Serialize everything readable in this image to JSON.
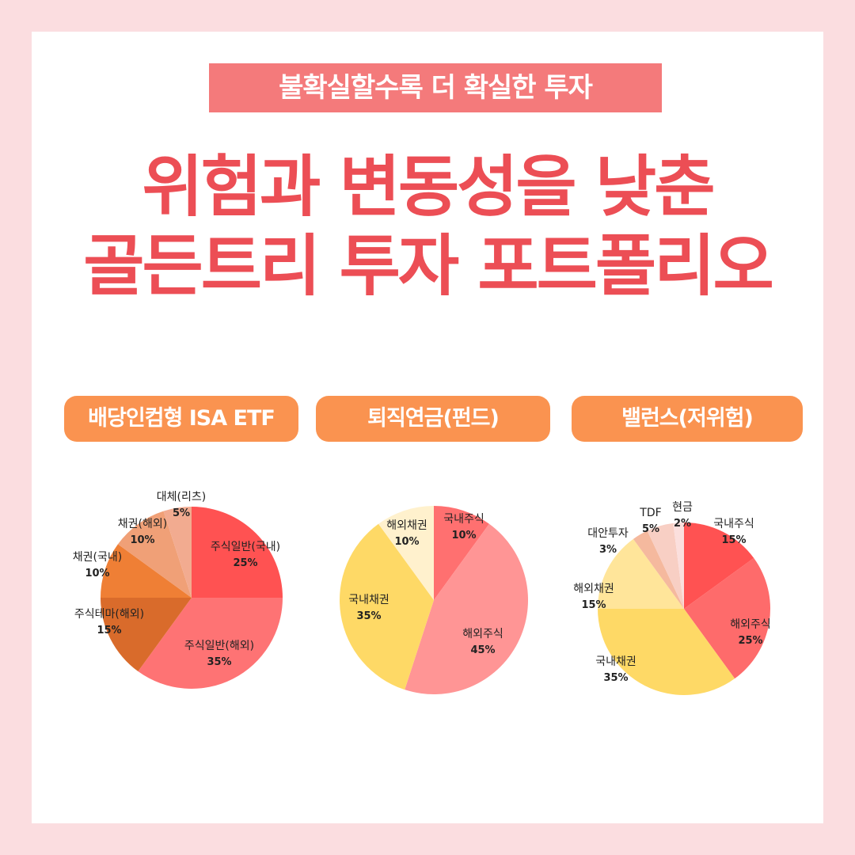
{
  "banner": {
    "text": "불확실할수록 더 확실한 투자"
  },
  "headline": {
    "line1": "위험과 변동성을 낮춘",
    "line2": "골든트리 투자 포트폴리오"
  },
  "chart_data": [
    {
      "type": "pie",
      "title": "배당인컴형 ISA ETF",
      "slices": [
        {
          "label": "주식일반(국내)",
          "value": 25,
          "value_label": "25%",
          "color": "#ff5252"
        },
        {
          "label": "주식일반(해외)",
          "value": 35,
          "value_label": "35%",
          "color": "#fe7374"
        },
        {
          "label": "주식테마(해외)",
          "value": 15,
          "value_label": "15%",
          "color": "#d96b2b"
        },
        {
          "label": "채권(국내)",
          "value": 10,
          "value_label": "10%",
          "color": "#ef7f35"
        },
        {
          "label": "채권(해외)",
          "value": 10,
          "value_label": "10%",
          "color": "#f0a077"
        },
        {
          "label": "대체(리츠)",
          "value": 5,
          "value_label": "5%",
          "color": "#f2ab90"
        }
      ]
    },
    {
      "type": "pie",
      "title": "퇴직연금(펀드)",
      "slices": [
        {
          "label": "국내주식",
          "value": 10,
          "value_label": "10%",
          "color": "#ff7070"
        },
        {
          "label": "해외주식",
          "value": 45,
          "value_label": "45%",
          "color": "#ff9595"
        },
        {
          "label": "국내채권",
          "value": 35,
          "value_label": "35%",
          "color": "#fed966"
        },
        {
          "label": "해외채권",
          "value": 10,
          "value_label": "10%",
          "color": "#fff1cd"
        }
      ]
    },
    {
      "type": "pie",
      "title": "밸런스(저위험)",
      "slices": [
        {
          "label": "국내주식",
          "value": 15,
          "value_label": "15%",
          "color": "#ff5252"
        },
        {
          "label": "해외주식",
          "value": 25,
          "value_label": "25%",
          "color": "#fe6b6b"
        },
        {
          "label": "국내채권",
          "value": 35,
          "value_label": "35%",
          "color": "#fed966"
        },
        {
          "label": "해외채권",
          "value": 15,
          "value_label": "15%",
          "color": "#ffe59a"
        },
        {
          "label": "대안투자",
          "value": 3,
          "value_label": "3%",
          "color": "#f5b99e"
        },
        {
          "label": "TDF",
          "value": 5,
          "value_label": "5%",
          "color": "#f8cfc4"
        },
        {
          "label": "현금",
          "value": 2,
          "value_label": "2%",
          "color": "#fbdfdd"
        }
      ]
    }
  ]
}
